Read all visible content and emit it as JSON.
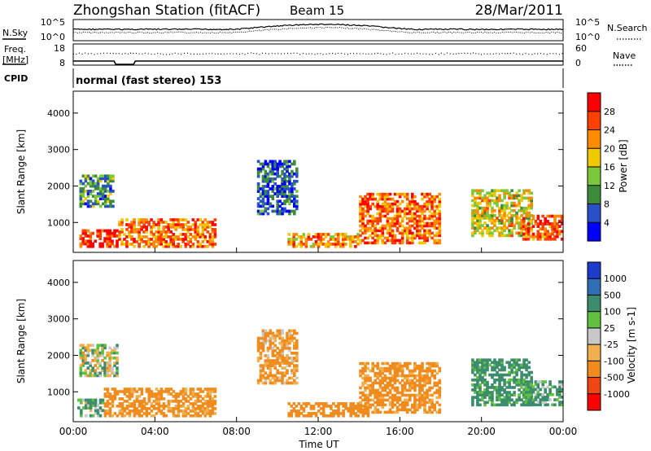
{
  "header": {
    "station": "Zhongshan Station (fitACF)",
    "beam": "Beam 15",
    "date": "28/Mar/2011"
  },
  "top_panels": {
    "nsky_label": "N.Sky",
    "nsky_ticks": [
      "10^5",
      "10^0"
    ],
    "nsearch_label": "N.Search",
    "nsearch_ticks": [
      "10^5",
      "10^0"
    ],
    "freq_label_1": "Freq.",
    "freq_label_2": "[MHz]",
    "freq_ticks": [
      "18",
      "8"
    ],
    "nave_label": "Nave",
    "nave_ticks": [
      "60",
      "0"
    ],
    "cpid_label": "CPID",
    "cpid_text": "normal (fast stereo) 153"
  },
  "chart_data": [
    {
      "type": "heatmap",
      "name": "power",
      "ylabel": "Slant Range [km]",
      "yticks": [
        "1000",
        "2000",
        "3000",
        "4000"
      ],
      "ylim": [
        180,
        4600
      ],
      "colorbar_label": "Power [dB]",
      "colorbar_ticks": [
        "4",
        "8",
        "12",
        "16",
        "20",
        "24",
        "28"
      ],
      "colorbar_colors": [
        "#0000ff",
        "#2850c8",
        "#3c8c3c",
        "#7cc83c",
        "#f0c800",
        "#ff8c00",
        "#ff4000",
        "#ff0000"
      ],
      "regions": [
        {
          "t0": 0.3,
          "t1": 2.2,
          "r0": 300,
          "r1": 800,
          "level": 28
        },
        {
          "t0": 2.2,
          "t1": 7.0,
          "r0": 300,
          "r1": 1100,
          "level": 24
        },
        {
          "t0": 0.3,
          "t1": 2.0,
          "r0": 1400,
          "r1": 2300,
          "level": 10
        },
        {
          "t0": 9.0,
          "t1": 11.0,
          "r0": 1200,
          "r1": 2700,
          "level": 6
        },
        {
          "t0": 10.5,
          "t1": 14.0,
          "r0": 300,
          "r1": 700,
          "level": 22
        },
        {
          "t0": 14.0,
          "t1": 18.0,
          "r0": 400,
          "r1": 1800,
          "level": 24
        },
        {
          "t0": 19.5,
          "t1": 22.5,
          "r0": 600,
          "r1": 1900,
          "level": 18
        },
        {
          "t0": 22.0,
          "t1": 24.0,
          "r0": 500,
          "r1": 1200,
          "level": 26
        }
      ]
    },
    {
      "type": "heatmap",
      "name": "velocity",
      "ylabel": "Slant Range [km]",
      "yticks": [
        "1000",
        "2000",
        "3000",
        "4000"
      ],
      "ylim": [
        180,
        4600
      ],
      "colorbar_label": "Velocity [m s-1]",
      "colorbar_ticks": [
        "1000",
        "500",
        "100",
        "25",
        "-25",
        "-100",
        "-500",
        "-1000"
      ],
      "colorbar_colors": [
        "#1e3ccc",
        "#2f6fb4",
        "#3c8c6e",
        "#60c040",
        "#c8c8c8",
        "#f0b050",
        "#f08c1e",
        "#f04614",
        "#ff0000"
      ],
      "regions": [
        {
          "t0": 0.2,
          "t1": 1.5,
          "r0": 300,
          "r1": 800,
          "level": 100
        },
        {
          "t0": 0.3,
          "t1": 2.2,
          "r0": 1400,
          "r1": 2300,
          "level": 20
        },
        {
          "t0": 1.5,
          "t1": 7.0,
          "r0": 300,
          "r1": 1100,
          "level": -200
        },
        {
          "t0": 9.0,
          "t1": 11.0,
          "r0": 1200,
          "r1": 2700,
          "level": -150
        },
        {
          "t0": 10.5,
          "t1": 14.5,
          "r0": 300,
          "r1": 700,
          "level": -250
        },
        {
          "t0": 14.0,
          "t1": 18.0,
          "r0": 400,
          "r1": 1800,
          "level": -200
        },
        {
          "t0": 19.5,
          "t1": 22.5,
          "r0": 600,
          "r1": 1900,
          "level": 200
        },
        {
          "t0": 22.0,
          "t1": 24.0,
          "r0": 600,
          "r1": 1300,
          "level": 150
        }
      ]
    }
  ],
  "x_axis": {
    "ticks": [
      "00:00",
      "04:00",
      "08:00",
      "12:00",
      "16:00",
      "20:00",
      "00:00"
    ],
    "label": "Time UT",
    "xlim_hours": [
      0,
      24
    ]
  }
}
